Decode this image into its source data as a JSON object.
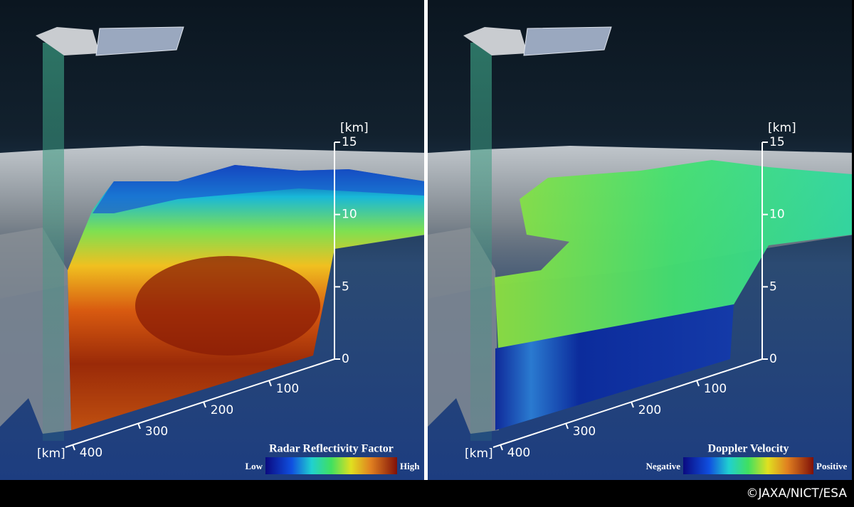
{
  "panels": [
    {
      "vertical_axis": {
        "unit": "[km]",
        "ticks": [
          15,
          10,
          5,
          0
        ]
      },
      "horizontal_axis": {
        "unit": "[km]",
        "ticks": [
          100,
          200,
          300,
          400
        ]
      },
      "colorbar": {
        "title": "Radar Reflectivity Factor",
        "low_label": "Low",
        "high_label": "High"
      }
    },
    {
      "vertical_axis": {
        "unit": "[km]",
        "ticks": [
          15,
          10,
          5,
          0
        ]
      },
      "horizontal_axis": {
        "unit": "[km]",
        "ticks": [
          100,
          200,
          300,
          400
        ]
      },
      "colorbar": {
        "title": "Doppler Velocity",
        "low_label": "Negative",
        "high_label": "Positive"
      }
    }
  ],
  "credit": "©JAXA/NICT/ESA"
}
